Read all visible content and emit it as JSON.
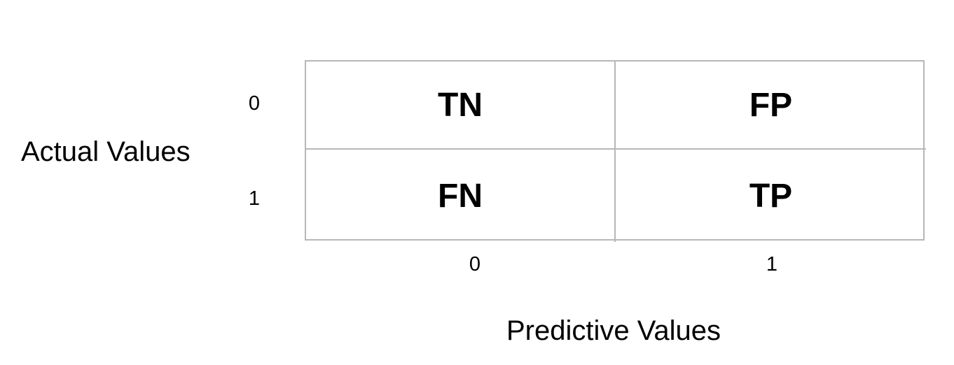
{
  "diagram": {
    "y_axis_title": "Actual Values",
    "x_axis_title": "Predictive Values",
    "row_labels": [
      "0",
      "1"
    ],
    "col_labels": [
      "0",
      "1"
    ],
    "cells": [
      [
        "TN",
        "FP"
      ],
      [
        "FN",
        "TP"
      ]
    ],
    "colors": {
      "grid_line": "#b7b7b7",
      "text": "#000000",
      "background": "#ffffff"
    }
  }
}
